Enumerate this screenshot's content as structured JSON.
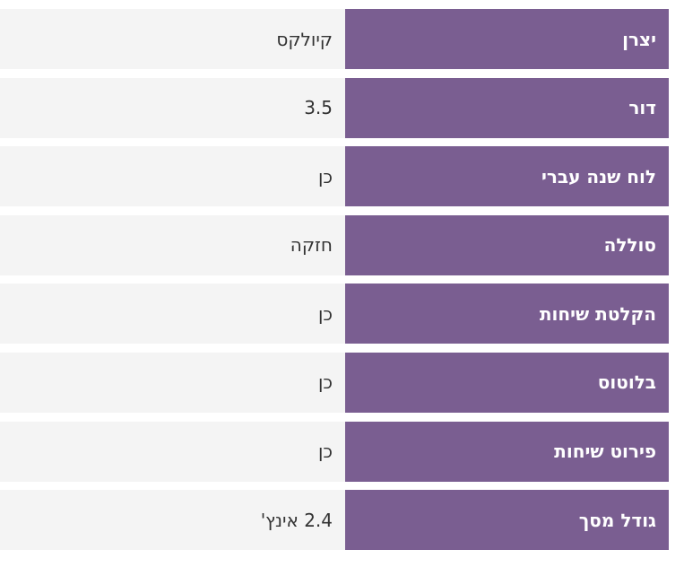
{
  "table": {
    "rows": [
      [
        "יצרן",
        "קיולקס"
      ],
      [
        "דור",
        "3.5"
      ],
      [
        "לוח שנה עברי",
        "כן"
      ],
      [
        "סוללה",
        "חזקה"
      ],
      [
        "הקלטת שיחות",
        "כן"
      ],
      [
        "בלוטוס",
        "כן"
      ],
      [
        "פירוט שיחות",
        "כן"
      ],
      [
        "גודל מסך",
        "2.4 אינץ'"
      ]
    ]
  }
}
